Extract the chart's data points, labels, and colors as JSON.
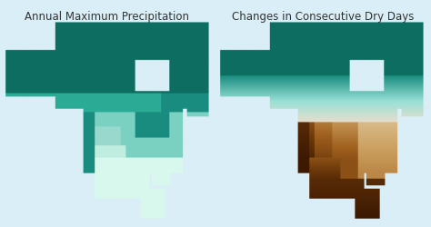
{
  "title_left": "Annual Maximum Precipitation",
  "title_right": "Changes in Consecutive Dry Days",
  "background_color": "#daeef7",
  "title_fontsize": 8.5,
  "fig_width": 4.74,
  "fig_height": 2.5,
  "map1_teal_dark": "#0d6e62",
  "map1_teal_mid": "#1a9e8a",
  "map1_teal_light": "#5fcfbc",
  "map1_teal_vlight": "#9ee4d8",
  "map1_teal_white": "#d0f5ef",
  "map2_teal_dark": "#0d6e62",
  "map2_teal_mid": "#1a9e8a",
  "map2_teal_light": "#7dcfc8",
  "map2_cream": "#eaddc8",
  "map2_light_brown": "#c9a06a",
  "map2_mid_brown": "#a06020",
  "map2_dark_brown": "#6e3a08",
  "map2_darkest_brown": "#3d1a02"
}
